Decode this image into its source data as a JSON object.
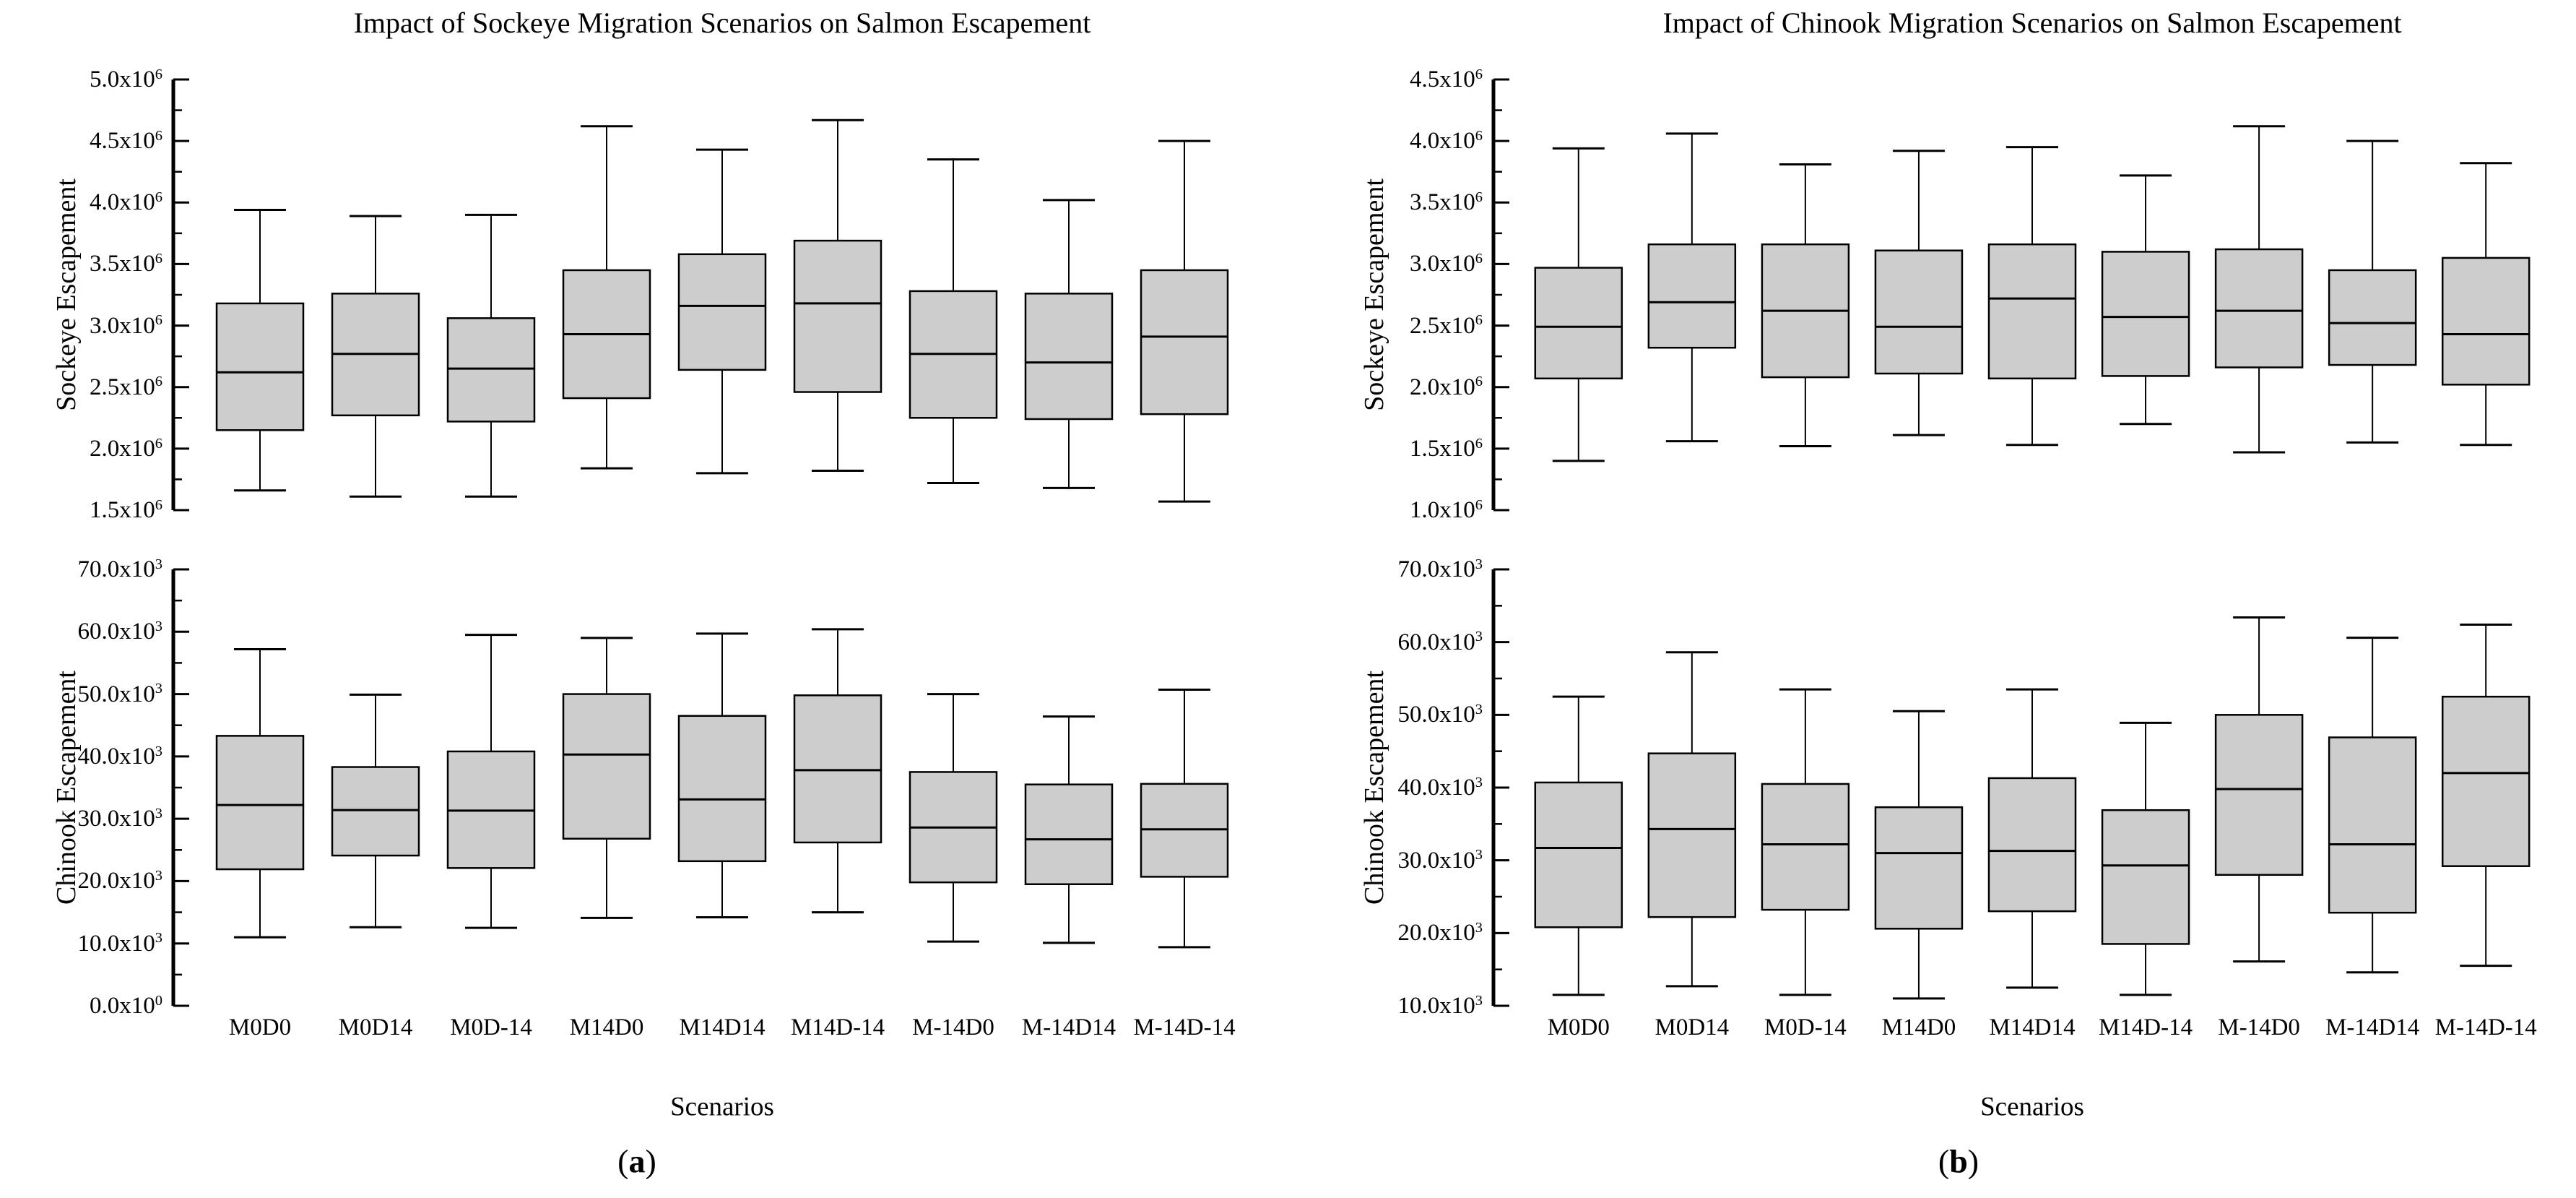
{
  "chart_data": {
    "type": "box",
    "layout_hint": "two panels (a,b), each with two vertically stacked box-plot subplots, shared x categories, no gridlines, left+bottom axes only, inward ticks",
    "colors": {
      "box_fill": "#cdcdcd",
      "line": "#000000",
      "background": "#ffffff"
    },
    "panels": [
      {
        "id": "a",
        "title": "Impact of Sockeye Migration Scenarios on Salmon Escapement",
        "caption_letter": "a",
        "xlabel": "Scenarios",
        "categories": [
          "M0D0",
          "M0D14",
          "M0D-14",
          "M14D0",
          "M14D14",
          "M14D-14",
          "M-14D0",
          "M-14D14",
          "M-14D-14"
        ],
        "subplots": [
          {
            "ylabel": "Sockeye Escapement",
            "ylim": [
              1500000,
              5000000
            ],
            "ytick_step": 500000,
            "ytick_labels": [
              "1.5x10^6",
              "2.0x10^6",
              "2.5x10^6",
              "3.0x10^6",
              "3.5x10^6",
              "4.0x10^6",
              "4.5x10^6",
              "5.0x10^6"
            ],
            "boxes": [
              {
                "category": "M0D0",
                "low": 1660000,
                "q1": 2150000,
                "median": 2620000,
                "q3": 3180000,
                "high": 3940000
              },
              {
                "category": "M0D14",
                "low": 1610000,
                "q1": 2270000,
                "median": 2770000,
                "q3": 3260000,
                "high": 3890000
              },
              {
                "category": "M0D-14",
                "low": 1610000,
                "q1": 2220000,
                "median": 2650000,
                "q3": 3060000,
                "high": 3900000
              },
              {
                "category": "M14D0",
                "low": 1840000,
                "q1": 2410000,
                "median": 2930000,
                "q3": 3450000,
                "high": 4620000
              },
              {
                "category": "M14D14",
                "low": 1800000,
                "q1": 2640000,
                "median": 3160000,
                "q3": 3580000,
                "high": 4430000
              },
              {
                "category": "M14D-14",
                "low": 1820000,
                "q1": 2460000,
                "median": 3180000,
                "q3": 3690000,
                "high": 4670000
              },
              {
                "category": "M-14D0",
                "low": 1720000,
                "q1": 2250000,
                "median": 2770000,
                "q3": 3280000,
                "high": 4350000
              },
              {
                "category": "M-14D14",
                "low": 1680000,
                "q1": 2240000,
                "median": 2700000,
                "q3": 3260000,
                "high": 4020000
              },
              {
                "category": "M-14D-14",
                "low": 1570000,
                "q1": 2280000,
                "median": 2910000,
                "q3": 3450000,
                "high": 4500000
              }
            ]
          },
          {
            "ylabel": "Chinook Escapement",
            "ylim": [
              0,
              70000
            ],
            "ytick_step": 10000,
            "ytick_labels": [
              "0.0x10^0",
              "10.0x10^3",
              "20.0x10^3",
              "30.0x10^3",
              "40.0x10^3",
              "50.0x10^3",
              "60.0x10^3",
              "70.0x10^3"
            ],
            "boxes": [
              {
                "category": "M0D0",
                "low": 11000,
                "q1": 21900,
                "median": 32200,
                "q3": 43300,
                "high": 57200
              },
              {
                "category": "M0D14",
                "low": 12600,
                "q1": 24100,
                "median": 31400,
                "q3": 38300,
                "high": 49900
              },
              {
                "category": "M0D-14",
                "low": 12500,
                "q1": 22100,
                "median": 31300,
                "q3": 40800,
                "high": 59500
              },
              {
                "category": "M14D0",
                "low": 14100,
                "q1": 26800,
                "median": 40300,
                "q3": 50000,
                "high": 59000
              },
              {
                "category": "M14D14",
                "low": 14200,
                "q1": 23200,
                "median": 33100,
                "q3": 46500,
                "high": 59700
              },
              {
                "category": "M14D-14",
                "low": 15000,
                "q1": 26200,
                "median": 37800,
                "q3": 49800,
                "high": 60400
              },
              {
                "category": "M-14D0",
                "low": 10300,
                "q1": 19800,
                "median": 28600,
                "q3": 37500,
                "high": 50000
              },
              {
                "category": "M-14D14",
                "low": 10100,
                "q1": 19500,
                "median": 26700,
                "q3": 35500,
                "high": 46400
              },
              {
                "category": "M-14D-14",
                "low": 9400,
                "q1": 20700,
                "median": 28300,
                "q3": 35600,
                "high": 50700
              }
            ]
          }
        ]
      },
      {
        "id": "b",
        "title": "Impact of Chinook Migration Scenarios on Salmon Escapement",
        "caption_letter": "b",
        "xlabel": "Scenarios",
        "categories": [
          "M0D0",
          "M0D14",
          "M0D-14",
          "M14D0",
          "M14D14",
          "M14D-14",
          "M-14D0",
          "M-14D14",
          "M-14D-14"
        ],
        "subplots": [
          {
            "ylabel": "Sockeye Escapement",
            "ylim": [
              1000000,
              4500000
            ],
            "ytick_step": 500000,
            "ytick_labels": [
              "1.0x10^6",
              "1.5x10^6",
              "2.0x10^6",
              "2.5x10^6",
              "3.0x10^6",
              "3.5x10^6",
              "4.0x10^6",
              "4.5x10^6"
            ],
            "boxes": [
              {
                "category": "M0D0",
                "low": 1400000,
                "q1": 2070000,
                "median": 2490000,
                "q3": 2970000,
                "high": 3940000
              },
              {
                "category": "M0D14",
                "low": 1560000,
                "q1": 2320000,
                "median": 2690000,
                "q3": 3160000,
                "high": 4060000
              },
              {
                "category": "M0D-14",
                "low": 1520000,
                "q1": 2080000,
                "median": 2620000,
                "q3": 3160000,
                "high": 3810000
              },
              {
                "category": "M14D0",
                "low": 1610000,
                "q1": 2110000,
                "median": 2490000,
                "q3": 3110000,
                "high": 3920000
              },
              {
                "category": "M14D14",
                "low": 1530000,
                "q1": 2070000,
                "median": 2720000,
                "q3": 3160000,
                "high": 3950000
              },
              {
                "category": "M14D-14",
                "low": 1700000,
                "q1": 2090000,
                "median": 2570000,
                "q3": 3100000,
                "high": 3720000
              },
              {
                "category": "M-14D0",
                "low": 1470000,
                "q1": 2160000,
                "median": 2620000,
                "q3": 3120000,
                "high": 4120000
              },
              {
                "category": "M-14D14",
                "low": 1550000,
                "q1": 2180000,
                "median": 2520000,
                "q3": 2950000,
                "high": 4000000
              },
              {
                "category": "M-14D-14",
                "low": 1530000,
                "q1": 2020000,
                "median": 2430000,
                "q3": 3050000,
                "high": 3820000
              }
            ]
          },
          {
            "ylabel": "Chinook Escapement",
            "ylim": [
              10000,
              70000
            ],
            "ytick_step": 10000,
            "ytick_labels": [
              "10.0x10^3",
              "20.0x10^3",
              "30.0x10^3",
              "40.0x10^3",
              "50.0x10^3",
              "60.0x10^3",
              "70.0x10^3"
            ],
            "boxes": [
              {
                "category": "M0D0",
                "low": 11500,
                "q1": 20800,
                "median": 31700,
                "q3": 40700,
                "high": 52500
              },
              {
                "category": "M0D14",
                "low": 12700,
                "q1": 22200,
                "median": 34300,
                "q3": 44700,
                "high": 58600
              },
              {
                "category": "M0D-14",
                "low": 11500,
                "q1": 23200,
                "median": 32200,
                "q3": 40500,
                "high": 53500
              },
              {
                "category": "M14D0",
                "low": 11000,
                "q1": 20600,
                "median": 31000,
                "q3": 37300,
                "high": 50500
              },
              {
                "category": "M14D14",
                "low": 12500,
                "q1": 23000,
                "median": 31300,
                "q3": 41300,
                "high": 53500
              },
              {
                "category": "M14D-14",
                "low": 11500,
                "q1": 18500,
                "median": 29300,
                "q3": 36900,
                "high": 48900
              },
              {
                "category": "M-14D0",
                "low": 16100,
                "q1": 28000,
                "median": 39800,
                "q3": 50000,
                "high": 63400
              },
              {
                "category": "M-14D14",
                "low": 14600,
                "q1": 22800,
                "median": 32200,
                "q3": 46900,
                "high": 60600
              },
              {
                "category": "M-14D-14",
                "low": 15500,
                "q1": 29200,
                "median": 42000,
                "q3": 52500,
                "high": 62400
              }
            ]
          }
        ]
      }
    ]
  }
}
